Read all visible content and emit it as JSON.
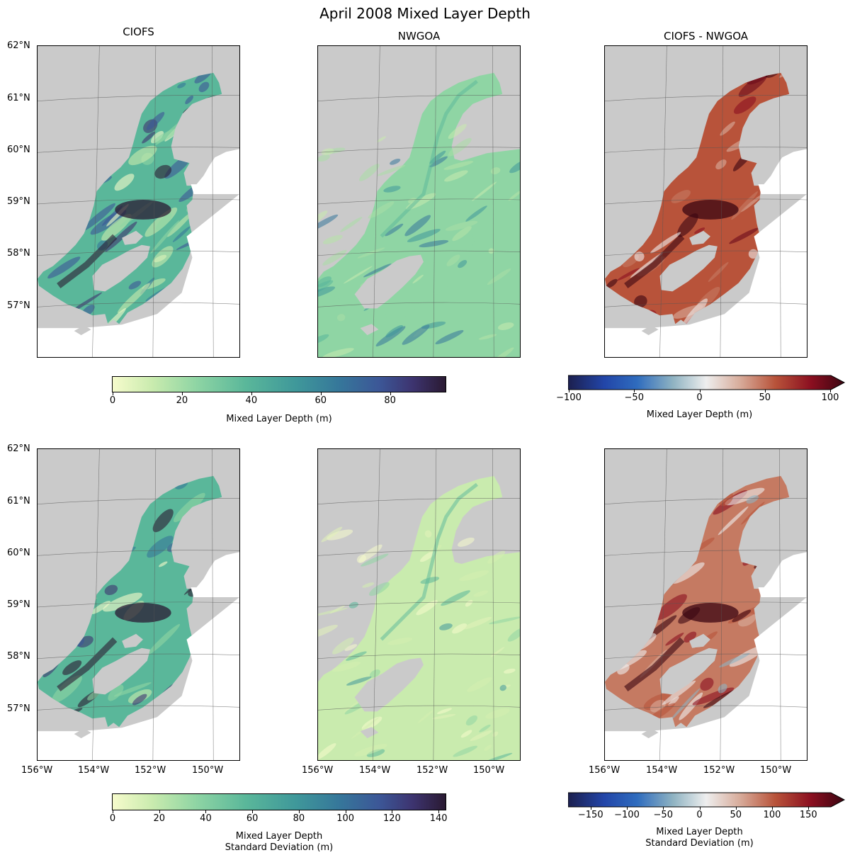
{
  "figure": {
    "title": "April 2008 Mixed Layer Depth"
  },
  "columns": [
    "CIOFS",
    "NWGOA",
    "CIOFS - NWGOA"
  ],
  "lat_ticks": [
    "62°N",
    "61°N",
    "60°N",
    "59°N",
    "58°N",
    "57°N"
  ],
  "lon_ticks": [
    "156°W",
    "154°W",
    "152°W",
    "150°W"
  ],
  "colors": {
    "land": "#cacaca",
    "deep_sequential": "#f6fbcc",
    "sequential_mid": "#5ab79a",
    "sequential_high": "#2a1a32",
    "diverging_low": "#1c1f4e",
    "diverging_mid": "#eeeeee",
    "diverging_high": "#3b0511"
  },
  "colorbars": {
    "mean": {
      "ticks": [
        "0",
        "20",
        "40",
        "60",
        "80"
      ],
      "label": "Mixed Layer Depth (m)",
      "range": [
        0,
        96
      ]
    },
    "mean_diff": {
      "ticks": [
        "−100",
        "−50",
        "0",
        "50",
        "100"
      ],
      "label": "Mixed Layer Depth (m)",
      "range": [
        -100,
        100
      ],
      "extend": "max"
    },
    "std": {
      "ticks": [
        "0",
        "20",
        "40",
        "60",
        "80",
        "100",
        "120",
        "140"
      ],
      "label_line1": "Mixed Layer Depth",
      "label_line2": "Standard Deviation (m)",
      "range": [
        0,
        143
      ]
    },
    "std_diff": {
      "ticks": [
        "−150",
        "−100",
        "−50",
        "0",
        "50",
        "100",
        "150"
      ],
      "label_line1": "Mixed Layer Depth",
      "label_line2": "Standard Deviation (m)",
      "range": [
        -180,
        180
      ],
      "extend": "max"
    }
  }
}
